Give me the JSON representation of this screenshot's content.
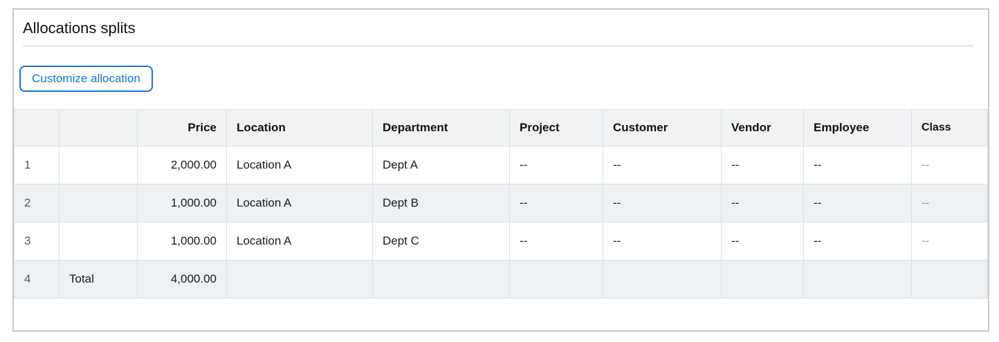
{
  "panel": {
    "title": "Allocations splits",
    "customize_button": "Customize allocation"
  },
  "table": {
    "columns": [
      {
        "key": "rownum",
        "label": ""
      },
      {
        "key": "label",
        "label": ""
      },
      {
        "key": "price",
        "label": "Price",
        "align": "right"
      },
      {
        "key": "location",
        "label": "Location"
      },
      {
        "key": "department",
        "label": "Department"
      },
      {
        "key": "project",
        "label": "Project"
      },
      {
        "key": "customer",
        "label": "Customer"
      },
      {
        "key": "vendor",
        "label": "Vendor"
      },
      {
        "key": "employee",
        "label": "Employee"
      },
      {
        "key": "class",
        "label": "Class"
      }
    ],
    "rows": [
      {
        "rownum": "1",
        "label": "",
        "price": "2,000.00",
        "location": "Location A",
        "department": "Dept A",
        "project": "--",
        "customer": "--",
        "vendor": "--",
        "employee": "--",
        "class": "--"
      },
      {
        "rownum": "2",
        "label": "",
        "price": "1,000.00",
        "location": "Location A",
        "department": "Dept B",
        "project": "--",
        "customer": "--",
        "vendor": "--",
        "employee": "--",
        "class": "--"
      },
      {
        "rownum": "3",
        "label": "",
        "price": "1,000.00",
        "location": "Location A",
        "department": "Dept C",
        "project": "--",
        "customer": "--",
        "vendor": "--",
        "employee": "--",
        "class": "--"
      },
      {
        "rownum": "4",
        "label": "Total",
        "price": "4,000.00",
        "location": "",
        "department": "",
        "project": "",
        "customer": "",
        "vendor": "",
        "employee": "",
        "class": ""
      }
    ]
  },
  "colors": {
    "accent_blue": "#1574d4",
    "panel_border": "#c9c9c9",
    "header_bg": "#f0f2f3",
    "stripe_bg": "#eef1f3",
    "grid_line": "#dbdfe2",
    "muted_text": "#8d9298"
  }
}
